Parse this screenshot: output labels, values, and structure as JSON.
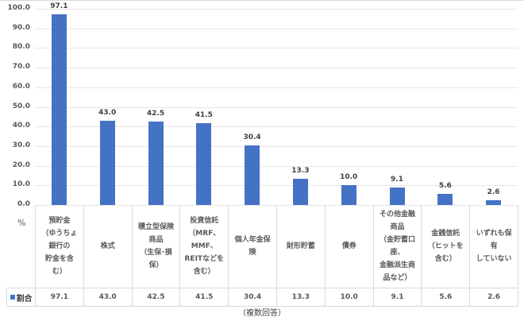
{
  "chart_data": {
    "type": "bar",
    "title": "",
    "xlabel": "",
    "ylabel": "%",
    "ylim": [
      0,
      100
    ],
    "yticks": [
      "0.0",
      "10.0",
      "20.0",
      "30.0",
      "40.0",
      "50.0",
      "60.0",
      "70.0",
      "80.0",
      "90.0",
      "100.0"
    ],
    "grid": true,
    "legend_position": "data-table",
    "categories": [
      "預貯金\n（ゆうちょ\n銀行の\n貯金を含\nむ）",
      "株式",
      "積立型保険\n商品\n（生保･損\n保）",
      "投資信託\n（MRF、\nMMF、\nREITなどを\n含む）",
      "個人年金保\n険",
      "財形貯蓄",
      "債券",
      "その他金融\n商品\n（金貯蓄口\n座、\n金融派生商\n品など）",
      "金銭信託\n（ヒットを\n含む）",
      "いずれも保\n有\nしていない"
    ],
    "series": [
      {
        "name": "割合",
        "color": "#4472c4",
        "values": [
          97.1,
          43.0,
          42.5,
          41.5,
          30.4,
          13.3,
          10.0,
          9.1,
          5.6,
          2.6
        ],
        "labels": [
          "97.1",
          "43.0",
          "42.5",
          "41.5",
          "30.4",
          "13.3",
          "10.0",
          "9.1",
          "5.6",
          "2.6"
        ]
      }
    ],
    "annotations": [
      "（複数回答）"
    ]
  },
  "unit_label": "%",
  "legend_label": "割合",
  "footnote": "（複数回答）"
}
